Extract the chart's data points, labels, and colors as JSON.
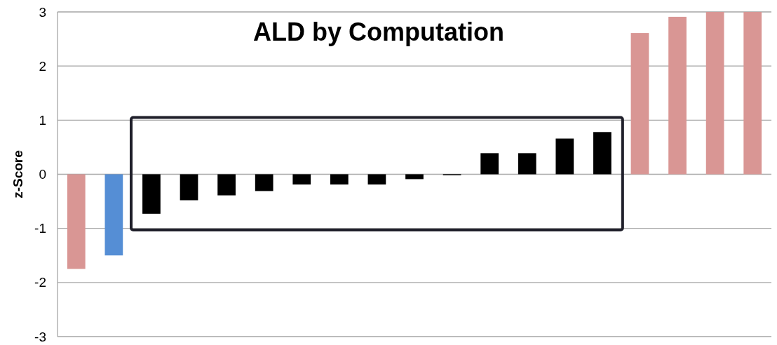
{
  "chart_data": {
    "type": "bar",
    "title": "ALD by Computation",
    "ylabel": "z-Score",
    "categories": [
      null,
      null,
      null,
      null,
      null,
      null,
      null,
      null,
      null,
      null,
      null,
      null,
      null,
      null,
      null,
      null,
      null,
      null,
      null
    ],
    "values": [
      -1.75,
      -1.5,
      -0.73,
      -0.48,
      -0.39,
      -0.31,
      -0.19,
      -0.19,
      -0.19,
      -0.09,
      -0.02,
      0.39,
      0.39,
      0.66,
      0.78,
      2.61,
      2.91,
      3,
      3
    ],
    "colors": [
      "#d99694",
      "#558ed5",
      "#000000",
      "#000000",
      "#000000",
      "#000000",
      "#000000",
      "#000000",
      "#000000",
      "#000000",
      "#000000",
      "#000000",
      "#000000",
      "#000000",
      "#000000",
      "#d99694",
      "#d99694",
      "#d99694",
      "#d99694"
    ],
    "ylim": [
      -3,
      3
    ],
    "yticks": [
      -3,
      -2,
      -1,
      0,
      1,
      2,
      3
    ],
    "grid": "y"
  }
}
